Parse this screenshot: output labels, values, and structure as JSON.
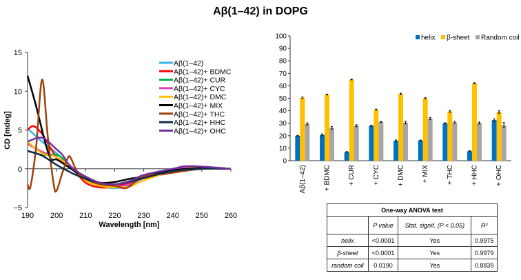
{
  "title": "Aβ(1–42) in DOPG",
  "chart_data": [
    {
      "type": "line",
      "xlabel": "Wavelength [nm]",
      "ylabel": "CD [mdeg]",
      "xlim": [
        190,
        260
      ],
      "ylim": [
        -5,
        15
      ],
      "xticks": [
        190,
        200,
        210,
        220,
        230,
        240,
        250,
        260
      ],
      "yticks": [
        -5,
        0,
        5,
        10,
        15
      ],
      "ytick_labels": [
        "−5",
        "0",
        "5",
        "10",
        "15"
      ],
      "legend": "top-right",
      "grid": false,
      "series": [
        {
          "name": "Aβ(1–42)",
          "color": "#33b5f0",
          "x": [
            190,
            195,
            200,
            205,
            210,
            215,
            220,
            225,
            230,
            240,
            250,
            260
          ],
          "y": [
            5.2,
            3.5,
            2,
            0.3,
            -1.5,
            -2.2,
            -2.5,
            -2.2,
            -1.2,
            -0.3,
            0.2,
            0
          ]
        },
        {
          "name": "Aβ(1–42)+ BDMC",
          "color": "#ff0000",
          "x": [
            190,
            192,
            195,
            200,
            205,
            210,
            215,
            220,
            225,
            230,
            240,
            250,
            260
          ],
          "y": [
            5,
            5.5,
            4.5,
            1.5,
            0.2,
            -1.8,
            -2.4,
            -2.3,
            -1.8,
            -1.2,
            -0.5,
            0,
            0
          ]
        },
        {
          "name": "Aβ(1–42)+ CUR",
          "color": "#00b050",
          "x": [
            190,
            195,
            200,
            203,
            207,
            210,
            215,
            220,
            225,
            230,
            240,
            250,
            260
          ],
          "y": [
            2.3,
            1.8,
            1.8,
            1,
            -0.5,
            -1.2,
            -2,
            -2,
            -1.6,
            -1,
            -0.2,
            0.1,
            0
          ]
        },
        {
          "name": "Aβ(1–42)+ CYC",
          "color": "#e040c0",
          "x": [
            190,
            195,
            200,
            205,
            210,
            215,
            220,
            225,
            230,
            240,
            247,
            260
          ],
          "y": [
            3.2,
            2.2,
            1.5,
            0.3,
            -1.2,
            -2,
            -2.3,
            -2,
            -1.2,
            -0.2,
            0.3,
            0
          ]
        },
        {
          "name": "Aβ(1–42)+ DMC",
          "color": "#ffc000",
          "x": [
            190,
            195,
            200,
            205,
            210,
            215,
            220,
            225,
            230,
            240,
            250,
            260
          ],
          "y": [
            3.5,
            2,
            1.5,
            0.2,
            -1.5,
            -2.2,
            -2.4,
            -2.3,
            -1.5,
            -0.3,
            0.2,
            0
          ]
        },
        {
          "name": "Aβ(1–42)+ MIX",
          "color": "#000000",
          "x": [
            190,
            193,
            196,
            198,
            200,
            203,
            207,
            210,
            215,
            220,
            225,
            230,
            240,
            250,
            260
          ],
          "y": [
            12,
            8,
            3.5,
            1.3,
            1.2,
            0.5,
            -0.5,
            -1.2,
            -1.8,
            -1.7,
            -1.3,
            -1,
            -0.2,
            0.1,
            0
          ]
        },
        {
          "name": "Aβ(1–42)+ THC",
          "color": "#a0400a",
          "x": [
            190,
            191,
            193,
            195,
            197,
            199,
            200,
            202,
            204,
            205,
            207,
            210,
            215,
            220,
            223,
            225,
            230,
            240,
            250,
            260
          ],
          "y": [
            -2,
            -2.3,
            3,
            11.5,
            4,
            -2,
            -2.8,
            -0.5,
            1.5,
            1.3,
            -0.3,
            -1.3,
            -2,
            -2.2,
            -2.5,
            -2.3,
            -1,
            -0.5,
            0,
            0
          ]
        },
        {
          "name": "Aβ(1–42)+ HHC",
          "color": "#0d2d4a",
          "x": [
            190,
            195,
            200,
            205,
            210,
            215,
            220,
            225,
            230,
            240,
            250,
            260
          ],
          "y": [
            2.3,
            1.7,
            0.5,
            -0.5,
            -1.3,
            -1.8,
            -2,
            -1.7,
            -1.2,
            -0.3,
            0,
            0
          ]
        },
        {
          "name": "Aβ(1–42)+ OHC",
          "color": "#7030a0",
          "x": [
            190,
            195,
            200,
            202,
            205,
            210,
            215,
            220,
            225,
            230,
            240,
            246,
            260
          ],
          "y": [
            3.5,
            4,
            2.5,
            1.8,
            0.2,
            -1,
            -1.8,
            -2,
            -1.6,
            -0.8,
            0,
            0.35,
            0
          ]
        }
      ]
    },
    {
      "type": "bar",
      "ylim": [
        0,
        100
      ],
      "yticks": [
        0,
        10,
        20,
        30,
        40,
        50,
        60,
        70,
        80,
        90,
        100
      ],
      "legend": "top-right",
      "grid": false,
      "categories": [
        "Aβ(1–42)",
        "+ BDMC",
        "+ CUR",
        "+ CYC",
        "+ DMC",
        "+ MIX",
        "+ THC",
        "+ HHC",
        "+ OHC"
      ],
      "series": [
        {
          "name": "helix",
          "color": "#0070c0",
          "values": [
            20,
            20.7,
            7,
            28,
            16,
            16.2,
            30,
            7.6,
            32.5
          ],
          "errors": [
            0.3,
            0.8,
            0.3,
            0.5,
            0.6,
            0.3,
            0.3,
            0.4,
            1
          ]
        },
        {
          "name": "β-sheet",
          "color": "#ffc000",
          "values": [
            50.5,
            53,
            65,
            41,
            53.5,
            50,
            39.5,
            62,
            39
          ],
          "errors": [
            0.6,
            0.3,
            0.3,
            0.3,
            0.6,
            0.5,
            0.7,
            0.4,
            1
          ]
        },
        {
          "name": "Random coil",
          "color": "#a6a6a6",
          "values": [
            29.5,
            26.3,
            28,
            31,
            30.5,
            33.8,
            30.7,
            30.2,
            28.5
          ],
          "errors": [
            0.8,
            1,
            0.8,
            0.3,
            1,
            0.8,
            0.8,
            0.8,
            2
          ]
        }
      ]
    }
  ],
  "table": {
    "title": "One-way ANOVA test",
    "headers": [
      "",
      "P value",
      "Stat. signif. (P < 0.05)",
      "R²"
    ],
    "rows": [
      [
        "helix",
        "<0.0001",
        "Yes",
        "0.9975"
      ],
      [
        "β-sheet",
        "<0.0001",
        "Yes",
        "0.9979"
      ],
      [
        "random coil",
        "0.0190",
        "Yes",
        "0.8839"
      ]
    ]
  }
}
